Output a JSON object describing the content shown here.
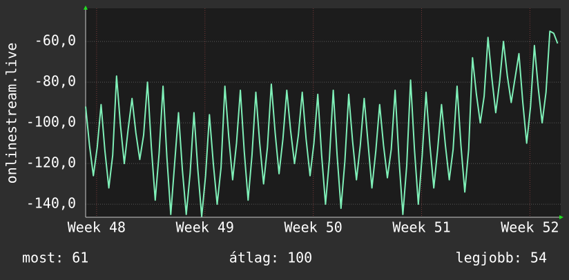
{
  "chart_data": {
    "type": "line",
    "y_label": "onlinestream.live",
    "x": [
      0,
      0.25,
      0.5,
      0.75,
      1,
      1.25,
      1.5,
      1.75,
      2,
      2.25,
      2.5,
      2.75,
      3,
      3.25,
      3.5,
      3.75,
      4,
      4.25,
      4.5,
      4.75,
      5,
      5.25,
      5.5,
      5.75,
      6,
      6.25,
      6.5,
      6.75,
      7,
      7.25,
      7.5,
      7.75,
      8,
      8.25,
      8.5,
      8.75,
      9,
      9.25,
      9.5,
      9.75,
      10,
      10.25,
      10.5,
      10.75,
      11,
      11.25,
      11.5,
      11.75,
      12,
      12.25,
      12.5,
      12.75,
      13,
      13.25,
      13.5,
      13.75,
      14,
      14.25,
      14.5,
      14.75,
      15,
      15.25,
      15.5,
      15.75,
      16,
      16.25,
      16.5,
      16.75,
      17,
      17.25,
      17.5,
      17.75,
      18,
      18.25,
      18.5,
      18.75,
      19,
      19.25,
      19.5,
      19.75,
      20,
      20.25,
      20.5,
      20.75,
      21,
      21.25,
      21.5,
      21.75,
      22,
      22.25,
      22.5,
      22.75,
      23,
      23.25,
      23.5,
      23.75,
      24,
      24.25,
      24.5,
      24.75,
      25,
      25.25,
      25.5,
      25.75,
      26,
      26.25,
      26.5,
      26.75,
      27,
      27.25,
      27.5,
      27.75,
      28,
      28.25,
      28.5,
      28.75,
      29,
      29.25,
      29.5,
      29.75,
      30,
      30.25,
      30.5
    ],
    "series": [
      {
        "color": "#7ff0b8",
        "values": [
          -92,
          -111,
          -126,
          -112,
          -91,
          -114,
          -132,
          -116,
          -77,
          -101,
          -120,
          -103,
          -88,
          -105,
          -118,
          -106,
          -80,
          -112,
          -138,
          -115,
          -82,
          -117,
          -145,
          -120,
          -95,
          -123,
          -145,
          -125,
          -95,
          -123,
          -146,
          -126,
          -96,
          -120,
          -140,
          -122,
          -82,
          -107,
          -128,
          -110,
          -84,
          -114,
          -138,
          -116,
          -85,
          -110,
          -130,
          -112,
          -81,
          -105,
          -125,
          -108,
          -84,
          -104,
          -120,
          -106,
          -85,
          -108,
          -126,
          -110,
          -86,
          -116,
          -140,
          -118,
          -84,
          -116,
          -142,
          -119,
          -86,
          -109,
          -128,
          -111,
          -88,
          -110,
          -132,
          -114,
          -91,
          -111,
          -127,
          -113,
          -84,
          -118,
          -145,
          -121,
          -79,
          -113,
          -140,
          -116,
          -85,
          -111,
          -132,
          -113,
          -91,
          -111,
          -128,
          -113,
          -82,
          -111,
          -134,
          -113,
          -68,
          -86,
          -100,
          -87,
          -58,
          -78,
          -95,
          -80,
          -60,
          -77,
          -90,
          -78,
          -66,
          -90,
          -110,
          -92,
          -62,
          -83,
          -100,
          -85,
          -55,
          -56,
          -61
        ]
      }
    ],
    "xlim": [
      0,
      30.7
    ],
    "xticks": [
      {
        "value": 0.71,
        "label": "Week 48"
      },
      {
        "value": 7.71,
        "label": "Week 49"
      },
      {
        "value": 14.71,
        "label": "Week 50"
      },
      {
        "value": 21.71,
        "label": "Week 51"
      },
      {
        "value": 28.71,
        "label": "Week 52"
      }
    ],
    "ylim": [
      -146.4,
      -43.7
    ],
    "yticks": [
      {
        "value": -60,
        "label": "-60,0"
      },
      {
        "value": -80,
        "label": "-80,0"
      },
      {
        "value": -100,
        "label": "-100,0"
      },
      {
        "value": -120,
        "label": "-120,0"
      },
      {
        "value": -140,
        "label": "-140,0"
      }
    ],
    "grid": true,
    "footer": {
      "current": "most: 61",
      "average": "átlag: 100",
      "best": "legjobb: 54"
    }
  }
}
